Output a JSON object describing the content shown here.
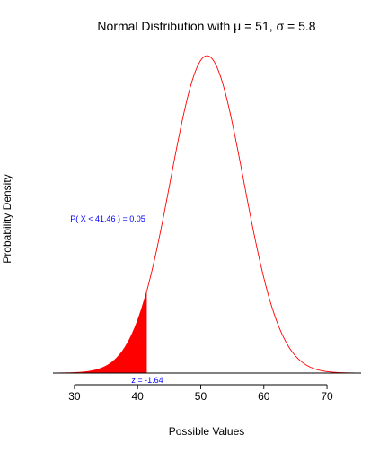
{
  "chart_data": {
    "type": "area",
    "title": "Normal Distribution with μ = 51, σ = 5.8",
    "xlabel": "Possible Values",
    "ylabel": "Probability Density",
    "xlim": [
      26.6,
      75.4
    ],
    "ylim": [
      0,
      0.0688
    ],
    "xticks": [
      30,
      40,
      50,
      60,
      70
    ],
    "grid": false,
    "legend": "none",
    "distribution": {
      "mean": 51,
      "sd": 5.8,
      "x_range": [
        27.8,
        74.2
      ]
    },
    "series": [
      {
        "values_type": "normal_pdf",
        "color": "#ff0000"
      }
    ],
    "shaded_region": {
      "from": 27.8,
      "to": 41.46,
      "color": "#ff0000"
    },
    "annotations": {
      "probability": "P( X < 41.46 ) = 0.05",
      "zscore": "z = -1.64",
      "color": "#0000ff"
    }
  }
}
